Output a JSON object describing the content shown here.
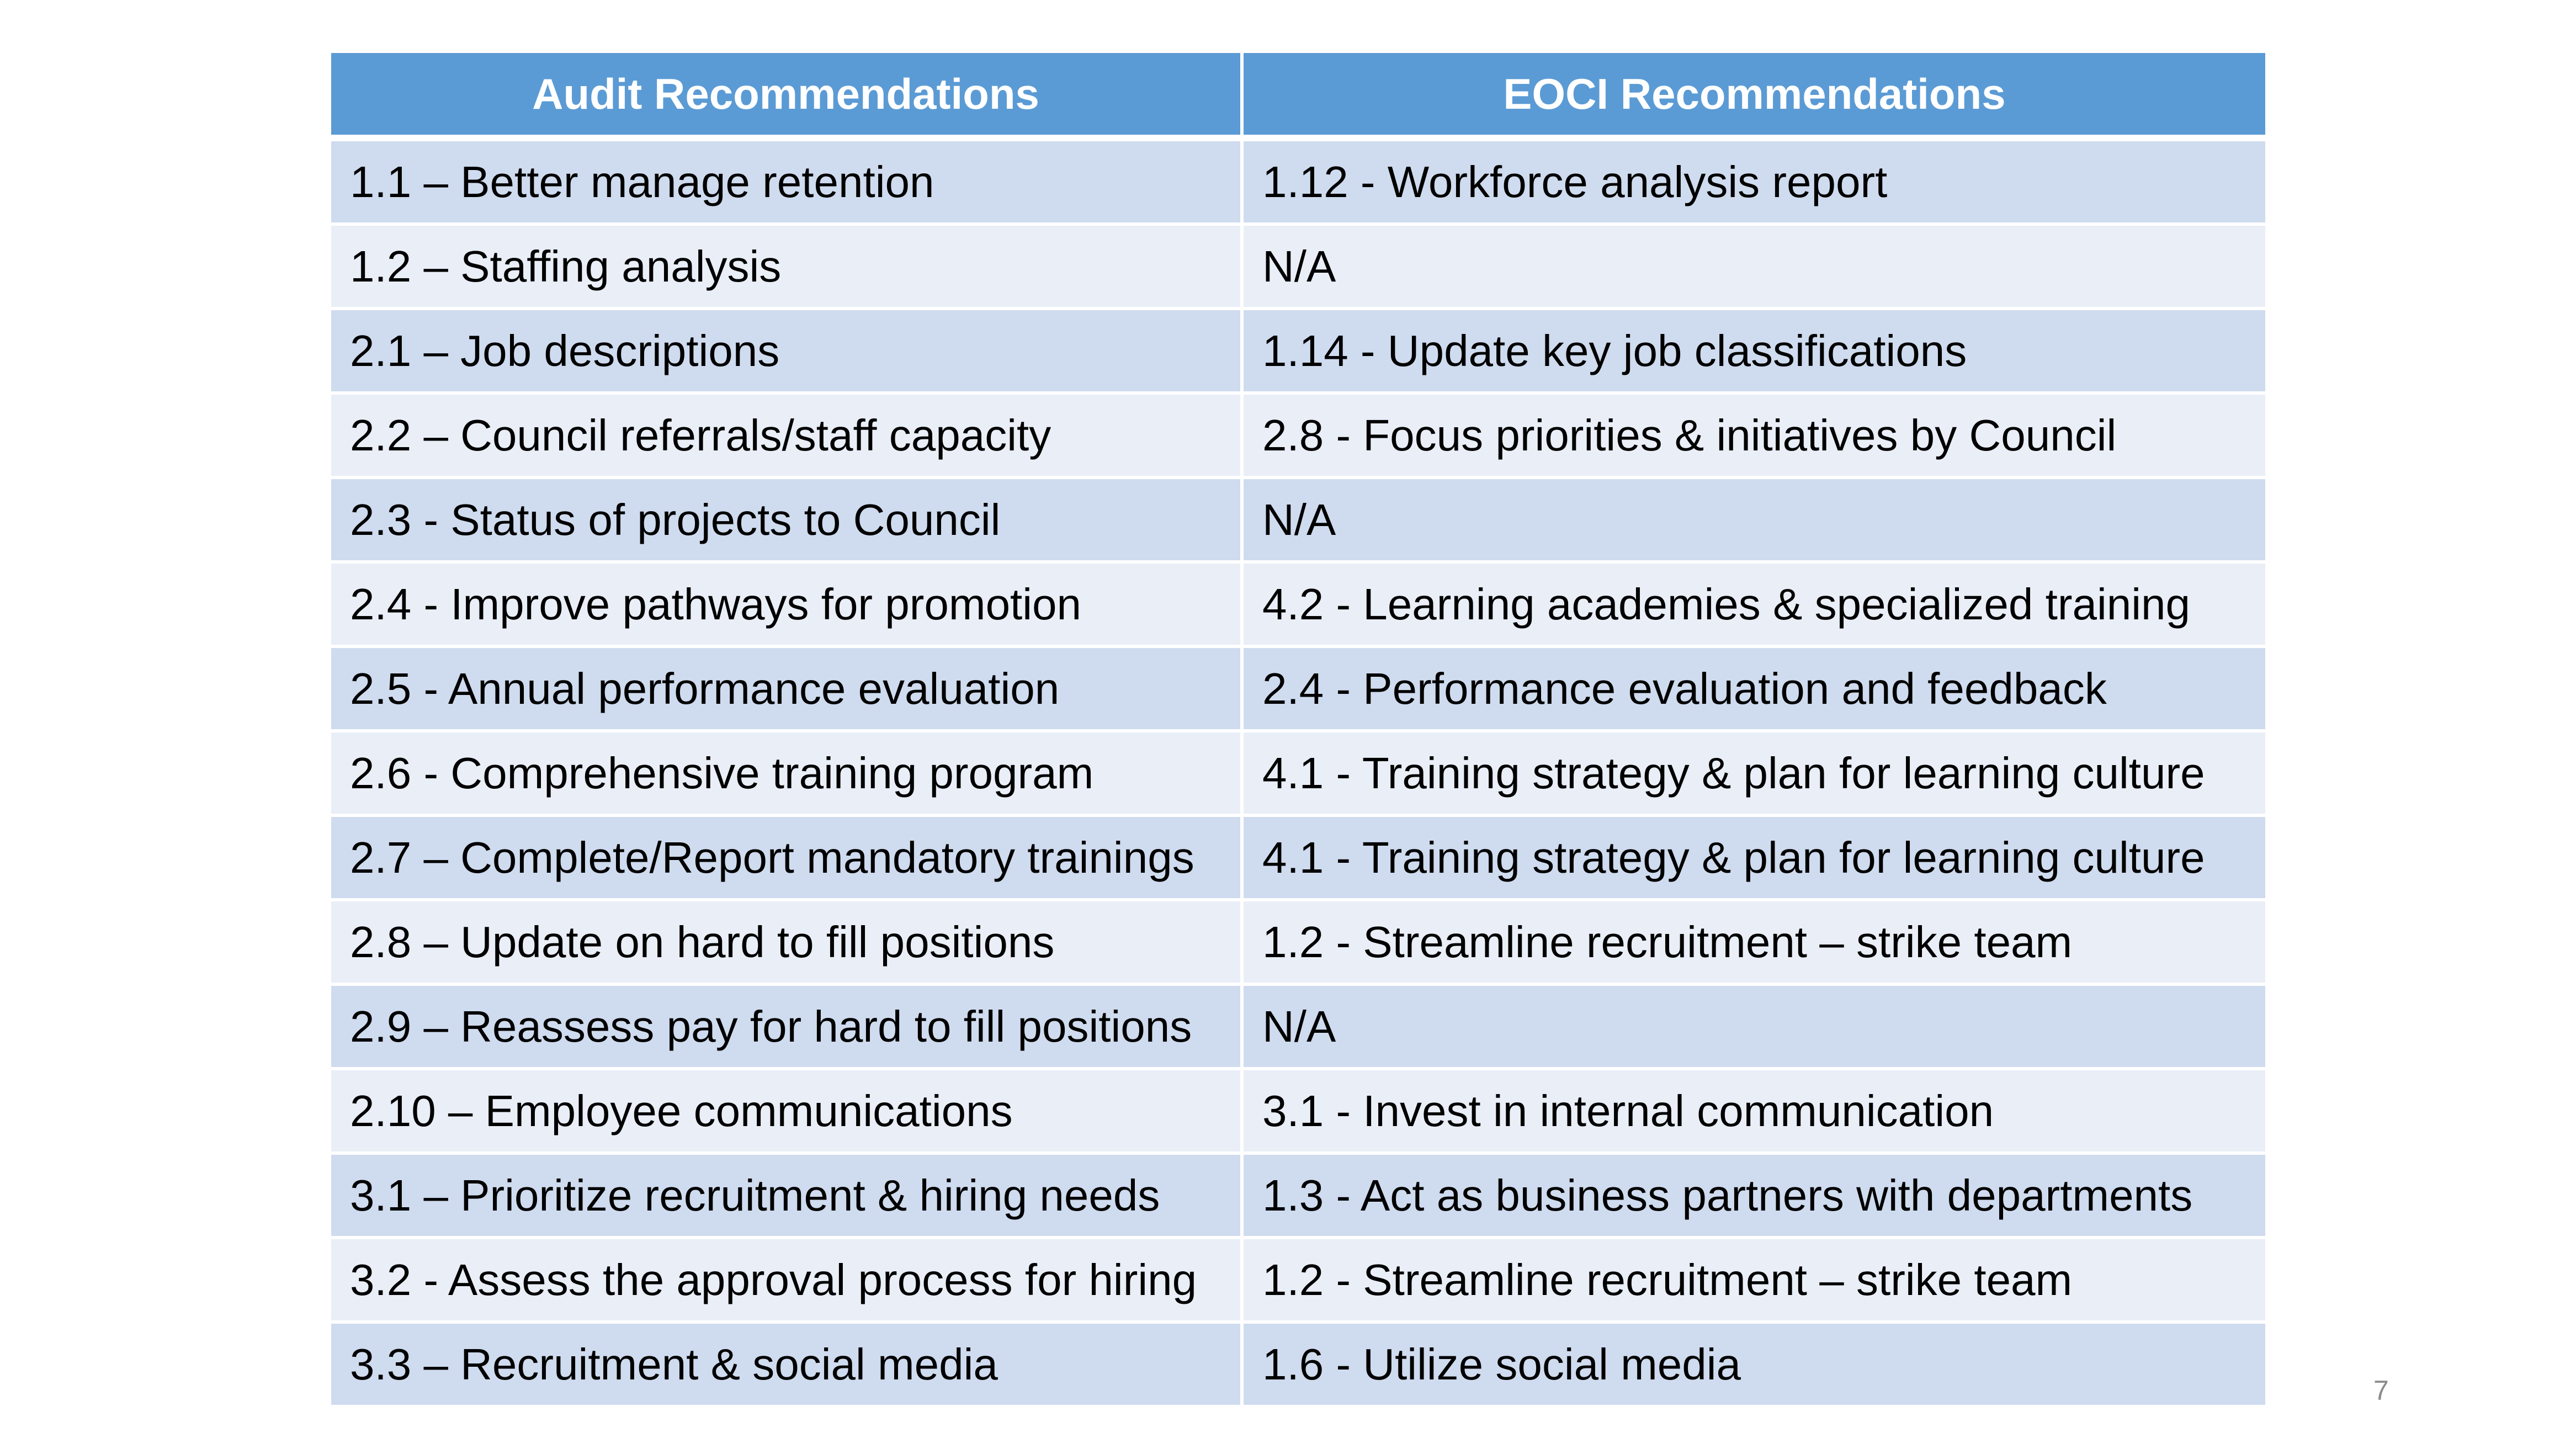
{
  "table": {
    "headers": [
      "Audit Recommendations",
      "EOCI Recommendations"
    ],
    "rows": [
      [
        "1.1 – Better manage retention",
        "1.12 - Workforce analysis report"
      ],
      [
        "1.2 – Staffing analysis",
        "N/A"
      ],
      [
        "2.1 – Job descriptions",
        "1.14 - Update key job classifications"
      ],
      [
        "2.2 – Council referrals/staff capacity",
        "2.8 - Focus priorities & initiatives by Council"
      ],
      [
        "2.3 - Status of projects to Council",
        "N/A"
      ],
      [
        "2.4 - Improve pathways for promotion",
        "4.2 - Learning academies & specialized training"
      ],
      [
        "2.5 - Annual performance evaluation",
        "2.4 - Performance evaluation and feedback"
      ],
      [
        "2.6 - Comprehensive training program",
        "4.1 - Training strategy & plan for learning culture"
      ],
      [
        "2.7 – Complete/Report mandatory trainings",
        "4.1 - Training strategy & plan for learning culture"
      ],
      [
        "2.8 – Update on hard to fill positions",
        "1.2 - Streamline recruitment – strike team"
      ],
      [
        "2.9 – Reassess pay for hard to fill positions",
        "N/A"
      ],
      [
        "2.10 – Employee communications",
        "3.1 - Invest in internal communication"
      ],
      [
        "3.1 – Prioritize recruitment & hiring needs",
        "1.3 - Act as business partners with departments"
      ],
      [
        "3.2 - Assess the approval process for hiring",
        "1.2 - Streamline recruitment – strike team"
      ],
      [
        "3.3 – Recruitment & social media",
        "1.6 - Utilize social media"
      ]
    ]
  },
  "page_number": "7",
  "colors": {
    "header_bg": "#5b9bd5",
    "row_dark": "#cfdbee",
    "row_light": "#e9eef7"
  }
}
